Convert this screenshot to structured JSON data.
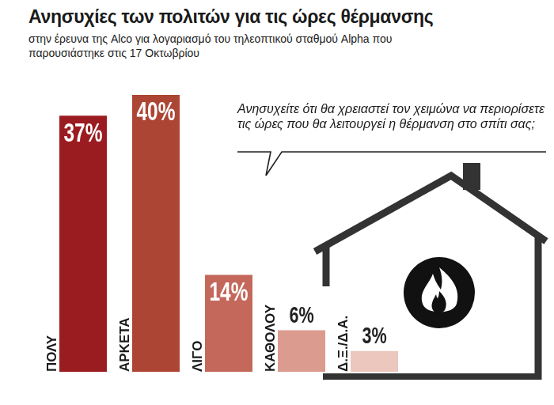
{
  "chart_data": {
    "type": "bar",
    "title": "Ανησυχίες των πολιτών για τις ώρες θέρμανσης",
    "subtitle": "στην έρευνα της Alco για λογαριασμό του τηλεοπτικού σταθμού Alpha που παρουσιάστηκε στις 17 Οκτωβρίου",
    "annotation": "Ανησυχείτε ότι θα χρειαστεί τον χειμώνα να περιορίσετε τις ώρες που θα λειτουργεί η θέρμανση στο σπίτι σας;",
    "categories": [
      "ΠΟΛΥ",
      "ΑΡΚΕΤΑ",
      "ΛΙΓΟ",
      "ΚΑΘΟΛΟΥ",
      "Δ.Ξ./Δ.Α."
    ],
    "values": [
      37,
      40,
      14,
      6,
      3
    ],
    "value_labels": [
      "37%",
      "40%",
      "14%",
      "6%",
      "3%"
    ],
    "colors": [
      "#9b1c20",
      "#ad4535",
      "#c4685b",
      "#dc9b8f",
      "#ecc7bd"
    ],
    "data_labels": true,
    "tick_labels": "x",
    "grid": false
  }
}
